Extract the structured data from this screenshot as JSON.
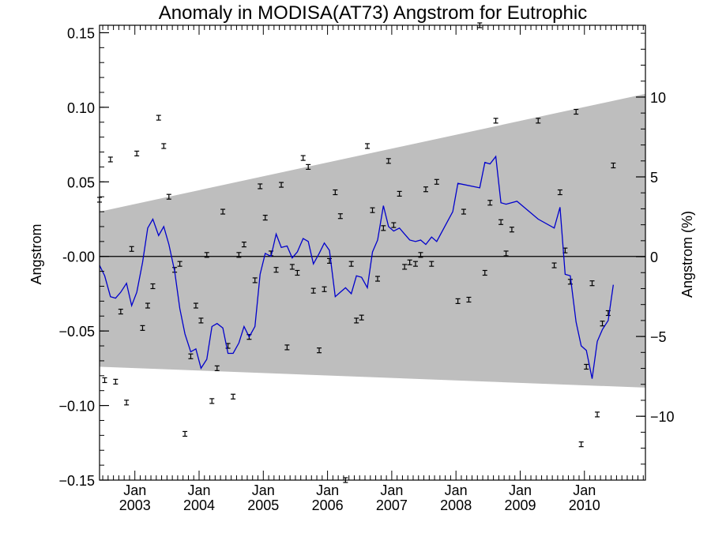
{
  "chart_data": {
    "type": "line",
    "title": "Anomaly in MODISA(AT73) Angstrom for Eutrophic",
    "ylabel": "Angstrom",
    "y2label": "Angstrom (%)",
    "ylim": [
      -0.15,
      0.155
    ],
    "y2lim": [
      -14.0,
      14.5
    ],
    "xlim": [
      2002.45,
      2010.95
    ],
    "yticks": [
      {
        "value": 0.15,
        "label": "0.15"
      },
      {
        "value": 0.1,
        "label": "0.10"
      },
      {
        "value": 0.05,
        "label": "0.05"
      },
      {
        "value": 0.0,
        "label": "-0.00"
      },
      {
        "value": -0.05,
        "label": "−0.05"
      },
      {
        "value": -0.1,
        "label": "−0.10"
      },
      {
        "value": -0.15,
        "label": "−0.15"
      }
    ],
    "y2ticks": [
      {
        "value": 10,
        "label": "10"
      },
      {
        "value": 5,
        "label": "5"
      },
      {
        "value": 0,
        "label": "0"
      },
      {
        "value": -5,
        "label": "−5"
      },
      {
        "value": -10,
        "label": "−10"
      }
    ],
    "xticks": [
      {
        "value": 2003.0,
        "month": "Jan",
        "year": "2003"
      },
      {
        "value": 2004.0,
        "month": "Jan",
        "year": "2004"
      },
      {
        "value": 2005.0,
        "month": "Jan",
        "year": "2005"
      },
      {
        "value": 2006.0,
        "month": "Jan",
        "year": "2006"
      },
      {
        "value": 2007.0,
        "month": "Jan",
        "year": "2007"
      },
      {
        "value": 2008.0,
        "month": "Jan",
        "year": "2008"
      },
      {
        "value": 2009.0,
        "month": "Jan",
        "year": "2009"
      },
      {
        "value": 2010.0,
        "month": "Jan",
        "year": "2010"
      }
    ],
    "band": {
      "upper": [
        [
          2002.45,
          0.03
        ],
        [
          2010.95,
          0.109
        ]
      ],
      "lower": [
        [
          2002.45,
          -0.074
        ],
        [
          2010.95,
          -0.088
        ]
      ],
      "color": "#bebebe"
    },
    "zero_line_color": "#000000",
    "series": [
      {
        "style": "line",
        "color": "#0000cc",
        "points": [
          [
            2002.45,
            -0.006
          ],
          [
            2002.53,
            -0.013
          ],
          [
            2002.62,
            -0.027
          ],
          [
            2002.7,
            -0.028
          ],
          [
            2002.78,
            -0.024
          ],
          [
            2002.87,
            -0.018
          ],
          [
            2002.95,
            -0.033
          ],
          [
            2003.03,
            -0.024
          ],
          [
            2003.12,
            -0.004
          ],
          [
            2003.2,
            0.019
          ],
          [
            2003.28,
            0.025
          ],
          [
            2003.37,
            0.014
          ],
          [
            2003.45,
            0.02
          ],
          [
            2003.53,
            0.008
          ],
          [
            2003.62,
            -0.01
          ],
          [
            2003.7,
            -0.035
          ],
          [
            2003.78,
            -0.052
          ],
          [
            2003.87,
            -0.064
          ],
          [
            2003.95,
            -0.062
          ],
          [
            2004.03,
            -0.075
          ],
          [
            2004.12,
            -0.069
          ],
          [
            2004.2,
            -0.047
          ],
          [
            2004.28,
            -0.045
          ],
          [
            2004.37,
            -0.048
          ],
          [
            2004.45,
            -0.065
          ],
          [
            2004.53,
            -0.065
          ],
          [
            2004.62,
            -0.058
          ],
          [
            2004.7,
            -0.047
          ],
          [
            2004.78,
            -0.054
          ],
          [
            2004.87,
            -0.047
          ],
          [
            2004.95,
            -0.012
          ],
          [
            2005.03,
            0.002
          ],
          [
            2005.12,
            0.0
          ],
          [
            2005.2,
            0.015
          ],
          [
            2005.28,
            0.006
          ],
          [
            2005.37,
            0.007
          ],
          [
            2005.45,
            -0.001
          ],
          [
            2005.53,
            0.003
          ],
          [
            2005.62,
            0.012
          ],
          [
            2005.7,
            0.01
          ],
          [
            2005.78,
            -0.005
          ],
          [
            2005.87,
            0.002
          ],
          [
            2005.95,
            0.009
          ],
          [
            2006.03,
            0.004
          ],
          [
            2006.12,
            -0.027
          ],
          [
            2006.2,
            -0.024
          ],
          [
            2006.28,
            -0.021
          ],
          [
            2006.37,
            -0.025
          ],
          [
            2006.45,
            -0.013
          ],
          [
            2006.53,
            -0.014
          ],
          [
            2006.62,
            -0.021
          ],
          [
            2006.7,
            0.003
          ],
          [
            2006.78,
            0.011
          ],
          [
            2006.87,
            0.034
          ],
          [
            2006.95,
            0.02
          ],
          [
            2007.03,
            0.017
          ],
          [
            2007.12,
            0.019
          ],
          [
            2007.2,
            0.015
          ],
          [
            2007.28,
            0.011
          ],
          [
            2007.37,
            0.01
          ],
          [
            2007.45,
            0.011
          ],
          [
            2007.53,
            0.008
          ],
          [
            2007.62,
            0.013
          ],
          [
            2007.7,
            0.01
          ],
          [
            2007.95,
            0.03
          ],
          [
            2008.03,
            0.049
          ],
          [
            2008.37,
            0.046
          ],
          [
            2008.45,
            0.063
          ],
          [
            2008.53,
            0.062
          ],
          [
            2008.62,
            0.067
          ],
          [
            2008.7,
            0.036
          ],
          [
            2008.78,
            0.035
          ],
          [
            2008.95,
            0.037
          ],
          [
            2009.28,
            0.025
          ],
          [
            2009.53,
            0.019
          ],
          [
            2009.62,
            0.033
          ],
          [
            2009.7,
            -0.012
          ],
          [
            2009.78,
            -0.013
          ],
          [
            2009.87,
            -0.044
          ],
          [
            2009.95,
            -0.06
          ],
          [
            2010.03,
            -0.063
          ],
          [
            2010.12,
            -0.082
          ],
          [
            2010.2,
            -0.057
          ],
          [
            2010.28,
            -0.049
          ],
          [
            2010.37,
            -0.043
          ],
          [
            2010.45,
            -0.019
          ]
        ]
      },
      {
        "style": "errorbar-points",
        "color": "#000000",
        "points": [
          [
            2002.45,
            0.038
          ],
          [
            2002.53,
            -0.083
          ],
          [
            2002.62,
            0.065
          ],
          [
            2002.7,
            -0.084
          ],
          [
            2002.78,
            -0.037
          ],
          [
            2002.87,
            -0.098
          ],
          [
            2002.95,
            0.005
          ],
          [
            2003.03,
            0.069
          ],
          [
            2003.12,
            -0.048
          ],
          [
            2003.2,
            -0.033
          ],
          [
            2003.28,
            -0.02
          ],
          [
            2003.37,
            0.093
          ],
          [
            2003.45,
            0.074
          ],
          [
            2003.53,
            0.04
          ],
          [
            2003.62,
            -0.009
          ],
          [
            2003.7,
            -0.005
          ],
          [
            2003.78,
            -0.119
          ],
          [
            2003.87,
            -0.067
          ],
          [
            2003.95,
            -0.033
          ],
          [
            2004.03,
            -0.043
          ],
          [
            2004.12,
            0.001
          ],
          [
            2004.2,
            -0.097
          ],
          [
            2004.28,
            -0.075
          ],
          [
            2004.37,
            0.03
          ],
          [
            2004.45,
            -0.06
          ],
          [
            2004.53,
            -0.094
          ],
          [
            2004.62,
            0.001
          ],
          [
            2004.7,
            0.008
          ],
          [
            2004.78,
            -0.054
          ],
          [
            2004.87,
            -0.016
          ],
          [
            2004.95,
            0.047
          ],
          [
            2005.03,
            0.026
          ],
          [
            2005.12,
            0.002
          ],
          [
            2005.2,
            -0.009
          ],
          [
            2005.28,
            0.048
          ],
          [
            2005.37,
            -0.061
          ],
          [
            2005.45,
            -0.007
          ],
          [
            2005.53,
            -0.011
          ],
          [
            2005.62,
            0.066
          ],
          [
            2005.7,
            0.06
          ],
          [
            2005.78,
            -0.023
          ],
          [
            2005.87,
            -0.063
          ],
          [
            2005.95,
            -0.022
          ],
          [
            2006.03,
            -0.003
          ],
          [
            2006.12,
            0.043
          ],
          [
            2006.2,
            0.027
          ],
          [
            2006.28,
            -0.15
          ],
          [
            2006.37,
            -0.005
          ],
          [
            2006.45,
            -0.043
          ],
          [
            2006.53,
            -0.041
          ],
          [
            2006.62,
            0.074
          ],
          [
            2006.7,
            0.031
          ],
          [
            2006.78,
            -0.015
          ],
          [
            2006.87,
            0.019
          ],
          [
            2006.95,
            0.064
          ],
          [
            2007.03,
            0.021
          ],
          [
            2007.12,
            0.042
          ],
          [
            2007.2,
            -0.007
          ],
          [
            2007.28,
            -0.004
          ],
          [
            2007.37,
            -0.005
          ],
          [
            2007.45,
            0.001
          ],
          [
            2007.53,
            0.045
          ],
          [
            2007.62,
            -0.005
          ],
          [
            2007.7,
            0.05
          ],
          [
            2008.03,
            -0.03
          ],
          [
            2008.12,
            0.03
          ],
          [
            2008.2,
            -0.029
          ],
          [
            2008.37,
            0.155
          ],
          [
            2008.45,
            -0.011
          ],
          [
            2008.53,
            0.036
          ],
          [
            2008.62,
            0.091
          ],
          [
            2008.7,
            0.023
          ],
          [
            2008.78,
            0.002
          ],
          [
            2008.87,
            0.018
          ],
          [
            2009.28,
            0.091
          ],
          [
            2009.53,
            -0.006
          ],
          [
            2009.62,
            0.043
          ],
          [
            2009.7,
            0.004
          ],
          [
            2009.78,
            -0.017
          ],
          [
            2009.87,
            0.097
          ],
          [
            2009.95,
            -0.126
          ],
          [
            2010.03,
            -0.074
          ],
          [
            2010.12,
            -0.018
          ],
          [
            2010.2,
            -0.106
          ],
          [
            2010.28,
            -0.045
          ],
          [
            2010.37,
            -0.038
          ],
          [
            2010.45,
            0.061
          ]
        ]
      }
    ],
    "grid": false,
    "legend": "none"
  }
}
